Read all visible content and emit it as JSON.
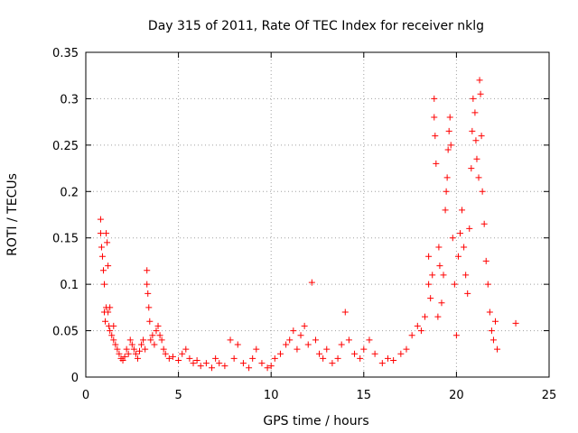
{
  "chart_data": {
    "type": "scatter",
    "title": "Day 315 of 2011, Rate Of TEC Index for receiver nklg",
    "xlabel": "GPS time / hours",
    "ylabel": "ROTI / TECUs",
    "xlim": [
      0,
      25
    ],
    "ylim": [
      0,
      0.35
    ],
    "x_ticks": [
      "0",
      "5",
      "10",
      "15",
      "20",
      "25"
    ],
    "y_ticks": [
      "0",
      "0.05",
      "0.1",
      "0.15",
      "0.2",
      "0.25",
      "0.3",
      "0.35"
    ],
    "grid": true,
    "marker": "plus",
    "color": "#ff0000",
    "series": [
      {
        "points": [
          [
            0.8,
            0.17
          ],
          [
            0.8,
            0.155
          ],
          [
            0.85,
            0.14
          ],
          [
            0.9,
            0.13
          ],
          [
            0.95,
            0.115
          ],
          [
            1.0,
            0.1
          ],
          [
            1.0,
            0.07
          ],
          [
            1.05,
            0.06
          ],
          [
            1.1,
            0.155
          ],
          [
            1.1,
            0.075
          ],
          [
            1.15,
            0.145
          ],
          [
            1.2,
            0.12
          ],
          [
            1.2,
            0.07
          ],
          [
            1.25,
            0.055
          ],
          [
            1.3,
            0.05
          ],
          [
            1.3,
            0.075
          ],
          [
            1.4,
            0.045
          ],
          [
            1.5,
            0.04
          ],
          [
            1.5,
            0.055
          ],
          [
            1.6,
            0.035
          ],
          [
            1.7,
            0.03
          ],
          [
            1.8,
            0.025
          ],
          [
            1.9,
            0.02
          ],
          [
            2.0,
            0.018
          ],
          [
            2.1,
            0.022
          ],
          [
            2.2,
            0.03
          ],
          [
            2.3,
            0.025
          ],
          [
            2.4,
            0.04
          ],
          [
            2.5,
            0.035
          ],
          [
            2.6,
            0.03
          ],
          [
            2.7,
            0.025
          ],
          [
            2.8,
            0.02
          ],
          [
            2.9,
            0.028
          ],
          [
            3.0,
            0.035
          ],
          [
            3.1,
            0.04
          ],
          [
            3.2,
            0.03
          ],
          [
            3.3,
            0.115
          ],
          [
            3.3,
            0.1
          ],
          [
            3.35,
            0.09
          ],
          [
            3.4,
            0.075
          ],
          [
            3.45,
            0.06
          ],
          [
            3.5,
            0.04
          ],
          [
            3.6,
            0.045
          ],
          [
            3.7,
            0.035
          ],
          [
            3.8,
            0.05
          ],
          [
            3.9,
            0.055
          ],
          [
            4.0,
            0.045
          ],
          [
            4.1,
            0.04
          ],
          [
            4.2,
            0.03
          ],
          [
            4.3,
            0.025
          ],
          [
            4.5,
            0.02
          ],
          [
            4.7,
            0.022
          ],
          [
            5.0,
            0.018
          ],
          [
            5.2,
            0.025
          ],
          [
            5.4,
            0.03
          ],
          [
            5.6,
            0.02
          ],
          [
            5.8,
            0.015
          ],
          [
            6.0,
            0.018
          ],
          [
            6.2,
            0.012
          ],
          [
            6.5,
            0.015
          ],
          [
            6.8,
            0.01
          ],
          [
            7.0,
            0.02
          ],
          [
            7.2,
            0.015
          ],
          [
            7.5,
            0.012
          ],
          [
            7.8,
            0.04
          ],
          [
            8.0,
            0.02
          ],
          [
            8.2,
            0.035
          ],
          [
            8.5,
            0.015
          ],
          [
            8.8,
            0.01
          ],
          [
            9.0,
            0.02
          ],
          [
            9.2,
            0.03
          ],
          [
            9.5,
            0.015
          ],
          [
            9.8,
            0.01
          ],
          [
            10.0,
            0.012
          ],
          [
            10.2,
            0.02
          ],
          [
            10.5,
            0.025
          ],
          [
            10.8,
            0.035
          ],
          [
            11.0,
            0.04
          ],
          [
            11.2,
            0.05
          ],
          [
            11.4,
            0.03
          ],
          [
            11.6,
            0.045
          ],
          [
            11.8,
            0.055
          ],
          [
            12.0,
            0.035
          ],
          [
            12.2,
            0.102
          ],
          [
            12.4,
            0.04
          ],
          [
            12.6,
            0.025
          ],
          [
            12.8,
            0.02
          ],
          [
            13.0,
            0.03
          ],
          [
            13.3,
            0.015
          ],
          [
            13.6,
            0.02
          ],
          [
            13.8,
            0.035
          ],
          [
            14.0,
            0.07
          ],
          [
            14.2,
            0.04
          ],
          [
            14.5,
            0.025
          ],
          [
            14.8,
            0.02
          ],
          [
            15.0,
            0.03
          ],
          [
            15.3,
            0.04
          ],
          [
            15.6,
            0.025
          ],
          [
            16.0,
            0.015
          ],
          [
            16.3,
            0.02
          ],
          [
            16.6,
            0.018
          ],
          [
            17.0,
            0.025
          ],
          [
            17.3,
            0.03
          ],
          [
            17.6,
            0.045
          ],
          [
            17.9,
            0.055
          ],
          [
            18.1,
            0.05
          ],
          [
            18.3,
            0.065
          ],
          [
            18.5,
            0.1
          ],
          [
            18.5,
            0.13
          ],
          [
            18.6,
            0.085
          ],
          [
            18.7,
            0.11
          ],
          [
            18.8,
            0.3
          ],
          [
            18.8,
            0.28
          ],
          [
            18.85,
            0.26
          ],
          [
            18.9,
            0.23
          ],
          [
            19.0,
            0.065
          ],
          [
            19.05,
            0.14
          ],
          [
            19.1,
            0.12
          ],
          [
            19.2,
            0.08
          ],
          [
            19.3,
            0.11
          ],
          [
            19.4,
            0.18
          ],
          [
            19.45,
            0.2
          ],
          [
            19.5,
            0.215
          ],
          [
            19.55,
            0.245
          ],
          [
            19.6,
            0.265
          ],
          [
            19.65,
            0.28
          ],
          [
            19.7,
            0.25
          ],
          [
            19.8,
            0.15
          ],
          [
            19.9,
            0.1
          ],
          [
            20.0,
            0.045
          ],
          [
            20.1,
            0.13
          ],
          [
            20.2,
            0.155
          ],
          [
            20.3,
            0.18
          ],
          [
            20.4,
            0.14
          ],
          [
            20.5,
            0.11
          ],
          [
            20.6,
            0.09
          ],
          [
            20.7,
            0.16
          ],
          [
            20.8,
            0.225
          ],
          [
            20.85,
            0.265
          ],
          [
            20.9,
            0.3
          ],
          [
            21.0,
            0.285
          ],
          [
            21.05,
            0.255
          ],
          [
            21.1,
            0.235
          ],
          [
            21.2,
            0.215
          ],
          [
            21.25,
            0.32
          ],
          [
            21.3,
            0.305
          ],
          [
            21.35,
            0.26
          ],
          [
            21.4,
            0.2
          ],
          [
            21.5,
            0.165
          ],
          [
            21.6,
            0.125
          ],
          [
            21.7,
            0.1
          ],
          [
            21.8,
            0.07
          ],
          [
            21.9,
            0.05
          ],
          [
            22.0,
            0.04
          ],
          [
            22.1,
            0.06
          ],
          [
            22.2,
            0.03
          ],
          [
            23.2,
            0.058
          ]
        ]
      }
    ]
  }
}
